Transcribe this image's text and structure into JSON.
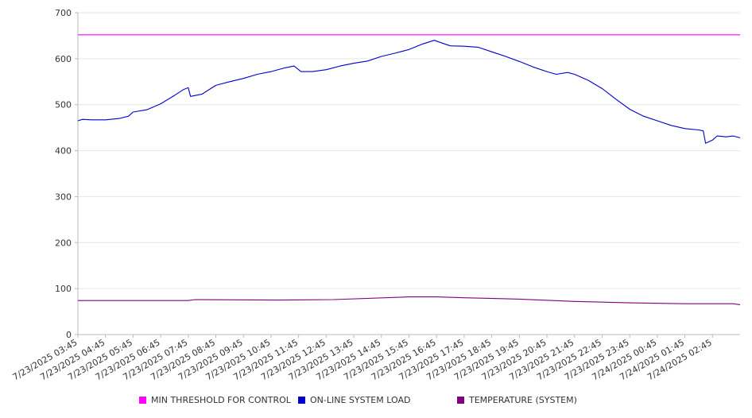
{
  "chart_data": {
    "type": "line",
    "title": "",
    "xlabel": "",
    "ylabel": "",
    "ylim": [
      0,
      700
    ],
    "y_ticks": [
      0,
      100,
      200,
      300,
      400,
      500,
      600,
      700
    ],
    "grid": true,
    "legend_position": "bottom",
    "x_tick_labels": [
      "7/23/2025 03:45",
      "7/23/2025 04:45",
      "7/23/2025 05:45",
      "7/23/2025 06:45",
      "7/23/2025 07:45",
      "7/23/2025 08:45",
      "7/23/2025 09:45",
      "7/23/2025 10:45",
      "7/23/2025 11:45",
      "7/23/2025 12:45",
      "7/23/2025 13:45",
      "7/23/2025 14:45",
      "7/23/2025 15:45",
      "7/23/2025 16:45",
      "7/23/2025 17:45",
      "7/23/2025 18:45",
      "7/23/2025 19:45",
      "7/23/2025 20:45",
      "7/23/2025 21:45",
      "7/23/2025 22:45",
      "7/23/2025 23:45",
      "7/24/2025 00:45",
      "7/24/2025 01:45",
      "7/24/2025 02:45"
    ],
    "x_range": [
      "7/23/2025 03:45",
      "7/24/2025 03:45"
    ],
    "series": [
      {
        "name": "MIN THRESHOLD FOR CONTROL",
        "color": "#ff00ff",
        "points": [
          [
            "7/23/2025 03:45",
            652
          ],
          [
            "7/24/2025 03:45",
            652
          ]
        ]
      },
      {
        "name": "ON-LINE SYSTEM LOAD",
        "color": "#0000cc",
        "points": [
          [
            "7/23/2025 03:45",
            465
          ],
          [
            "7/23/2025 03:55",
            468
          ],
          [
            "7/23/2025 04:15",
            467
          ],
          [
            "7/23/2025 04:45",
            467
          ],
          [
            "7/23/2025 05:15",
            470
          ],
          [
            "7/23/2025 05:35",
            475
          ],
          [
            "7/23/2025 05:45",
            484
          ],
          [
            "7/23/2025 06:15",
            489
          ],
          [
            "7/23/2025 06:45",
            502
          ],
          [
            "7/23/2025 07:15",
            520
          ],
          [
            "7/23/2025 07:35",
            533
          ],
          [
            "7/23/2025 07:45",
            537
          ],
          [
            "7/23/2025 07:50",
            518
          ],
          [
            "7/23/2025 08:15",
            523
          ],
          [
            "7/23/2025 08:45",
            542
          ],
          [
            "7/23/2025 09:15",
            550
          ],
          [
            "7/23/2025 09:45",
            557
          ],
          [
            "7/23/2025 10:15",
            566
          ],
          [
            "7/23/2025 10:45",
            572
          ],
          [
            "7/23/2025 11:15",
            580
          ],
          [
            "7/23/2025 11:35",
            584
          ],
          [
            "7/23/2025 11:50",
            572
          ],
          [
            "7/23/2025 12:15",
            572
          ],
          [
            "7/23/2025 12:45",
            576
          ],
          [
            "7/23/2025 13:15",
            584
          ],
          [
            "7/23/2025 13:45",
            590
          ],
          [
            "7/23/2025 14:15",
            595
          ],
          [
            "7/23/2025 14:45",
            605
          ],
          [
            "7/23/2025 15:15",
            612
          ],
          [
            "7/23/2025 15:45",
            620
          ],
          [
            "7/23/2025 16:15",
            632
          ],
          [
            "7/23/2025 16:40",
            640
          ],
          [
            "7/23/2025 17:00",
            633
          ],
          [
            "7/23/2025 17:15",
            628
          ],
          [
            "7/23/2025 17:45",
            627
          ],
          [
            "7/23/2025 18:15",
            625
          ],
          [
            "7/23/2025 18:45",
            615
          ],
          [
            "7/23/2025 19:15",
            605
          ],
          [
            "7/23/2025 19:45",
            594
          ],
          [
            "7/23/2025 20:15",
            582
          ],
          [
            "7/23/2025 20:45",
            572
          ],
          [
            "7/23/2025 21:05",
            566
          ],
          [
            "7/23/2025 21:30",
            570
          ],
          [
            "7/23/2025 21:45",
            566
          ],
          [
            "7/23/2025 22:15",
            553
          ],
          [
            "7/23/2025 22:45",
            535
          ],
          [
            "7/23/2025 23:15",
            512
          ],
          [
            "7/23/2025 23:45",
            490
          ],
          [
            "7/24/2025 00:15",
            475
          ],
          [
            "7/24/2025 00:45",
            465
          ],
          [
            "7/24/2025 01:15",
            455
          ],
          [
            "7/24/2025 01:45",
            448
          ],
          [
            "7/24/2025 02:15",
            445
          ],
          [
            "7/24/2025 02:25",
            443
          ],
          [
            "7/24/2025 02:30",
            416
          ],
          [
            "7/24/2025 02:45",
            423
          ],
          [
            "7/24/2025 02:55",
            432
          ],
          [
            "7/24/2025 03:15",
            430
          ],
          [
            "7/24/2025 03:30",
            432
          ],
          [
            "7/24/2025 03:45",
            428
          ]
        ]
      },
      {
        "name": "TEMPERATURE (SYSTEM)",
        "color": "#800080",
        "points": [
          [
            "7/23/2025 03:45",
            74
          ],
          [
            "7/23/2025 07:45",
            74
          ],
          [
            "7/23/2025 08:00",
            76
          ],
          [
            "7/23/2025 11:00",
            75
          ],
          [
            "7/23/2025 13:00",
            76
          ],
          [
            "7/23/2025 15:45",
            82
          ],
          [
            "7/23/2025 16:45",
            82
          ],
          [
            "7/23/2025 17:45",
            80
          ],
          [
            "7/23/2025 19:45",
            77
          ],
          [
            "7/23/2025 21:45",
            72
          ],
          [
            "7/23/2025 23:45",
            69
          ],
          [
            "7/24/2025 01:45",
            67
          ],
          [
            "7/24/2025 03:30",
            67
          ],
          [
            "7/24/2025 03:45",
            65
          ]
        ]
      }
    ]
  }
}
